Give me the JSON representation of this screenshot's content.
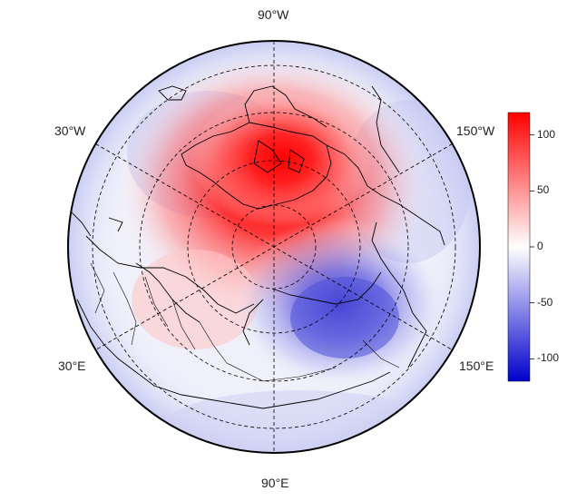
{
  "map": {
    "projection": "north polar stereographic",
    "longitude_labels": {
      "top": "90°W",
      "upper_left": "30°W",
      "upper_right": "150°W",
      "lower_left": "30°E",
      "lower_right": "150°E",
      "bottom": "90°E"
    },
    "graticule": "dashed",
    "coastlines": true,
    "country_borders": true
  },
  "field": {
    "description_of_pattern": "dipole anomaly",
    "positive_center": "Canadian Arctic Archipelago / Greenland",
    "negative_center": "Siberia / Laptev Sea"
  },
  "colorbar": {
    "min": -120,
    "max": 120,
    "ticks": [
      "100",
      "50",
      "0",
      "-50",
      "-100"
    ],
    "tick_values": [
      100,
      50,
      0,
      -50,
      -100
    ],
    "colors": {
      "high": "#ff0000",
      "mid": "#ffffff",
      "low": "#0000cc"
    }
  }
}
